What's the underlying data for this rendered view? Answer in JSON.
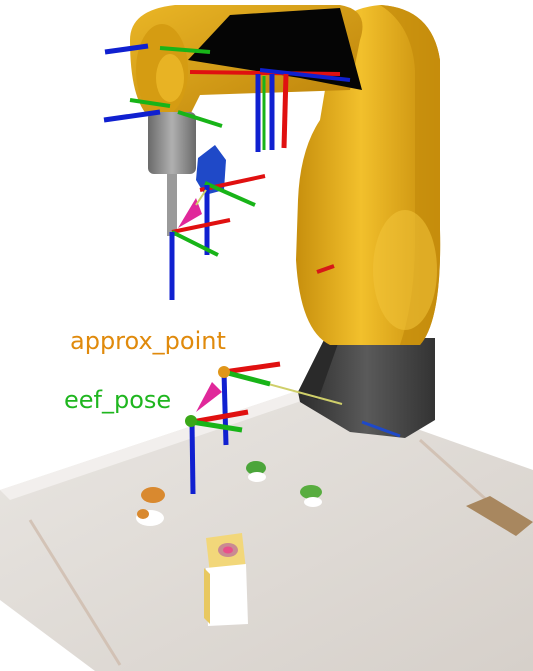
{
  "scene": {
    "frames": [
      {
        "label": "approx_point",
        "color": "#e08a0c"
      },
      {
        "label": "eef_pose",
        "color": "#1fb61f"
      }
    ]
  },
  "colors": {
    "robot_yellow": "#e6b019",
    "robot_base": "#444444",
    "table_surface": "#e7e3df",
    "axis_x": "#e01010",
    "axis_y": "#18b418",
    "axis_z": "#1020d0",
    "pose_arrow": "#e0289a",
    "pose_marker": "#3aa818",
    "link_line": "#cfcf6a",
    "gripper_block": "#1f49c8"
  },
  "icons": [
    "axis-triad-icon",
    "pose-arrow-icon"
  ]
}
